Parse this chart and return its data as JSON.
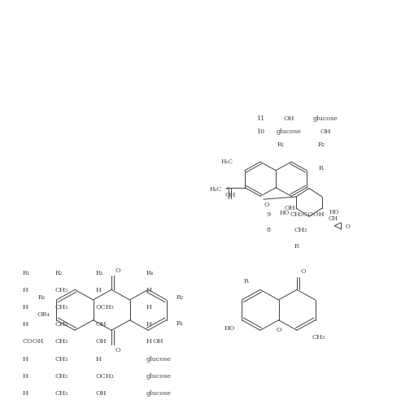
{
  "bg_color": "#ffffff",
  "line_color": "#404040",
  "text_color": "#404040",
  "table1_headers": [
    "R₁",
    "R₂",
    "R₃",
    "R₄"
  ],
  "table1_rows": [
    [
      "H",
      "CH₃",
      "H",
      "H"
    ],
    [
      "H",
      "CH₃",
      "OCH₃",
      "H"
    ],
    [
      "H",
      "CH₃",
      "OH",
      "H"
    ],
    [
      "COOH",
      "CH₃",
      "OH",
      "H"
    ],
    [
      "H",
      "CH₃",
      "H",
      "glucose"
    ],
    [
      "H",
      "CH₃",
      "OCH₃",
      "glucose"
    ],
    [
      "H",
      "CH₃",
      "OH",
      "glucose"
    ]
  ],
  "table2_rows": [
    [
      "8",
      "CH₃"
    ],
    [
      "9",
      "CH₂COOH"
    ]
  ],
  "table3_rows": [
    [
      "10",
      "glucose",
      "OH"
    ],
    [
      "11",
      "OH",
      "glucose"
    ]
  ]
}
